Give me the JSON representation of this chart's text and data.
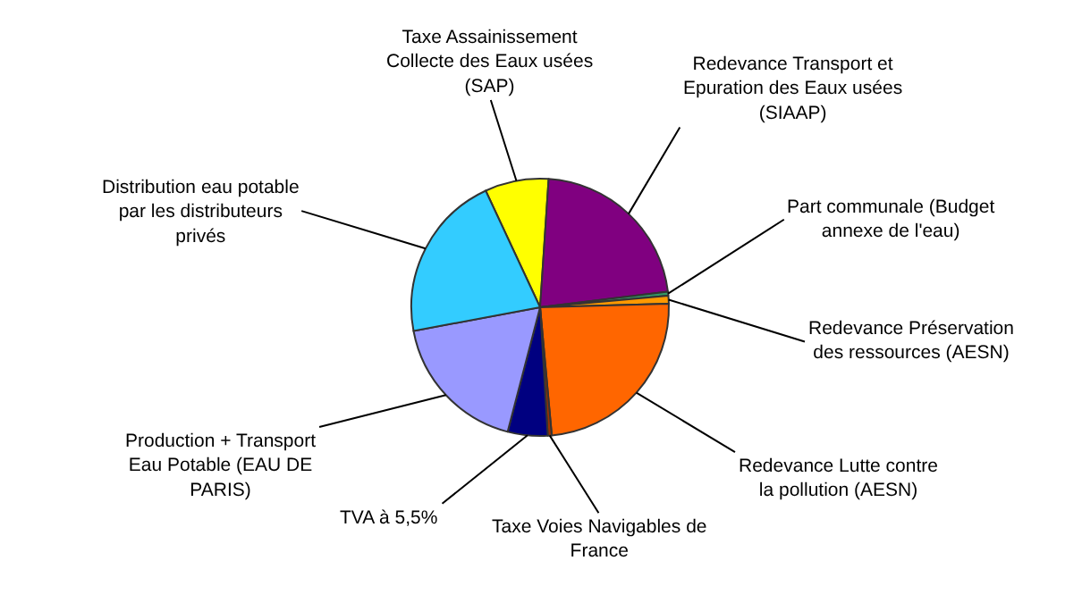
{
  "chart_data": {
    "type": "pie",
    "categories": [
      "Taxe Assainissement Collecte des Eaux usées (SAP)",
      "Redevance Transport et Epuration des Eaux usées (SIAAP)",
      "Part communale (Budget annexe de l'eau)",
      "Redevance Préservation des ressources (AESN)",
      "Redevance Lutte contre la pollution (AESN)",
      "Taxe Voies Navigables de France",
      "TVA à 5,5%",
      "Production + Transport Eau Potable (EAU DE PARIS)",
      "Distribution eau potable par les distributeurs privés"
    ],
    "values": [
      8,
      22,
      0.5,
      1,
      24,
      0.5,
      5,
      18,
      21
    ],
    "colors": [
      "#ffff00",
      "#800080",
      "#339966",
      "#ff9900",
      "#ff6600",
      "#993300",
      "#000080",
      "#9999ff",
      "#33ccff"
    ]
  }
}
